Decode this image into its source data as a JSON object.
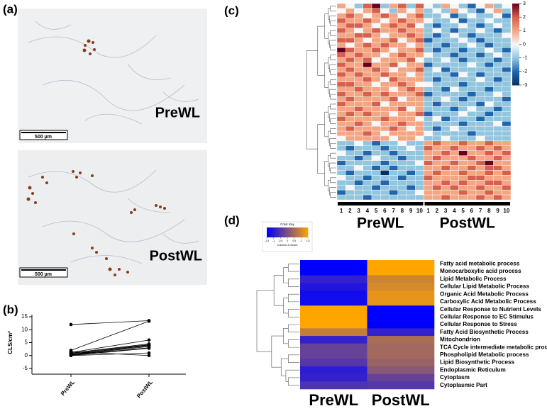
{
  "panel_labels": [
    "(a)",
    "(b)",
    "(c)",
    "(d)"
  ],
  "images": [
    {
      "label": "PreWL",
      "scale_bar": "500 µm"
    },
    {
      "label": "PostWL",
      "scale_bar": "500 µm"
    }
  ],
  "chart_data": [
    {
      "type": "line",
      "y_label": "CLS/cm²",
      "categories": [
        "PreWL",
        "PostWL"
      ],
      "ylim": [
        -5,
        15
      ],
      "yticks": [
        -5,
        0,
        5,
        10,
        15
      ],
      "color": "#000000",
      "series": [
        {
          "values": [
            12,
            13.5
          ]
        },
        {
          "values": [
            2,
            13.3
          ]
        },
        {
          "values": [
            1.2,
            6
          ]
        },
        {
          "values": [
            1,
            4.5
          ]
        },
        {
          "values": [
            0.8,
            4.2
          ]
        },
        {
          "values": [
            0.5,
            3.8
          ]
        },
        {
          "values": [
            0.3,
            3.5
          ]
        },
        {
          "values": [
            0.2,
            3
          ]
        },
        {
          "values": [
            0,
            2.8
          ]
        },
        {
          "values": [
            0,
            1
          ]
        },
        {
          "values": [
            1.5,
            0
          ]
        },
        {
          "values": [
            0.5,
            4
          ]
        }
      ]
    },
    {
      "type": "heatmap",
      "categories": [
        "1",
        "2",
        "3",
        "4",
        "5",
        "6",
        "7",
        "8",
        "9",
        "10",
        "1",
        "2",
        "3",
        "4",
        "5",
        "6",
        "7",
        "8",
        "9",
        "10"
      ],
      "groups": [
        "PreWL",
        "PostWL"
      ],
      "clim": [
        -3,
        3
      ],
      "colorbar_ticks": [
        3,
        2,
        1,
        0,
        -1,
        -2,
        -3
      ],
      "colors": [
        "#053061",
        "#2166ac",
        "#92c5de",
        "#f7f7f7",
        "#f4a582",
        "#d6604d",
        "#67001f"
      ],
      "values": [
        [
          1,
          0,
          -1,
          2,
          3,
          -1,
          1,
          2,
          -1,
          2,
          0,
          -1,
          1,
          0,
          -1,
          -2,
          0,
          1,
          -1,
          0
        ],
        [
          0,
          1,
          0,
          1,
          2,
          0,
          -1,
          1,
          0,
          1,
          -1,
          0,
          -1,
          1,
          0,
          -1,
          -2,
          0,
          1,
          -1
        ],
        [
          1,
          2,
          1,
          0,
          1,
          2,
          1,
          0,
          1,
          2,
          -1,
          -1,
          0,
          -2,
          -1,
          0,
          -1,
          -1,
          0,
          -2
        ],
        [
          2,
          1,
          1,
          2,
          1,
          0,
          1,
          2,
          1,
          1,
          0,
          -1,
          -1,
          0,
          -2,
          -1,
          -1,
          0,
          -1,
          -1
        ],
        [
          1,
          2,
          2,
          1,
          0,
          1,
          2,
          1,
          2,
          0,
          -1,
          -2,
          -1,
          -1,
          0,
          -1,
          -2,
          -1,
          0,
          -1
        ],
        [
          2,
          1,
          0,
          1,
          2,
          1,
          1,
          2,
          1,
          1,
          -1,
          0,
          -1,
          -2,
          -1,
          -1,
          0,
          -1,
          -2,
          -1
        ],
        [
          1,
          1,
          2,
          2,
          1,
          0,
          1,
          1,
          2,
          1,
          -1,
          -2,
          -1,
          0,
          -1,
          -2,
          -1,
          -1,
          -1,
          0
        ],
        [
          2,
          2,
          1,
          0,
          1,
          1,
          2,
          0,
          1,
          2,
          -2,
          -1,
          -1,
          -1,
          0,
          -1,
          -2,
          -1,
          -1,
          -1
        ],
        [
          1,
          0,
          1,
          2,
          1,
          2,
          1,
          1,
          0,
          1,
          -1,
          -1,
          -2,
          -1,
          -1,
          0,
          -1,
          -2,
          -1,
          -1
        ],
        [
          3,
          2,
          1,
          1,
          2,
          1,
          0,
          1,
          1,
          2,
          -1,
          -2,
          -1,
          -1,
          -2,
          -1,
          -1,
          0,
          -1,
          -2
        ],
        [
          2,
          1,
          2,
          1,
          1,
          0,
          1,
          2,
          1,
          1,
          0,
          -1,
          -1,
          -2,
          -1,
          -1,
          -2,
          -1,
          0,
          -1
        ],
        [
          1,
          2,
          1,
          2,
          0,
          1,
          1,
          1,
          2,
          0,
          -1,
          -1,
          0,
          -1,
          -2,
          -1,
          -1,
          -1,
          -2,
          -1
        ],
        [
          2,
          1,
          1,
          3,
          1,
          1,
          2,
          0,
          1,
          1,
          -2,
          -1,
          -1,
          -1,
          -1,
          0,
          -1,
          -2,
          -1,
          -1
        ],
        [
          1,
          2,
          1,
          1,
          2,
          1,
          0,
          1,
          1,
          2,
          -1,
          0,
          -2,
          -1,
          -1,
          -1,
          -1,
          -1,
          -1,
          -2
        ],
        [
          2,
          1,
          2,
          1,
          1,
          2,
          1,
          1,
          0,
          1,
          -1,
          -1,
          -1,
          -2,
          0,
          -1,
          -2,
          -1,
          -1,
          -1
        ],
        [
          1,
          1,
          1,
          2,
          1,
          0,
          2,
          1,
          1,
          1,
          -1,
          -2,
          -1,
          -1,
          -1,
          -1,
          0,
          -1,
          -2,
          -1
        ],
        [
          2,
          2,
          1,
          1,
          0,
          1,
          1,
          2,
          1,
          0,
          0,
          -1,
          -1,
          -1,
          -2,
          -1,
          -1,
          -1,
          -1,
          -1
        ],
        [
          1,
          1,
          2,
          1,
          1,
          1,
          0,
          1,
          2,
          1,
          -1,
          -1,
          -2,
          0,
          -1,
          -1,
          -1,
          -2,
          -1,
          -1
        ],
        [
          2,
          1,
          1,
          2,
          1,
          2,
          1,
          1,
          1,
          2,
          -2,
          -1,
          -1,
          -1,
          -1,
          -2,
          -1,
          -1,
          0,
          -1
        ],
        [
          1,
          2,
          1,
          1,
          1,
          1,
          2,
          0,
          1,
          1,
          -1,
          -1,
          0,
          -1,
          -2,
          -1,
          -1,
          -1,
          -1,
          -2
        ],
        [
          2,
          1,
          1,
          1,
          2,
          0,
          1,
          1,
          1,
          1,
          -1,
          -2,
          -1,
          -1,
          -1,
          -1,
          -2,
          0,
          -1,
          -1
        ],
        [
          1,
          1,
          2,
          1,
          1,
          1,
          1,
          2,
          0,
          1,
          -1,
          -1,
          -1,
          -2,
          -1,
          0,
          -1,
          -1,
          -2,
          -1
        ],
        [
          1,
          2,
          1,
          2,
          1,
          1,
          0,
          1,
          1,
          2,
          -2,
          -1,
          -1,
          -1,
          0,
          -1,
          -1,
          -2,
          -1,
          -1
        ],
        [
          2,
          1,
          1,
          1,
          1,
          2,
          1,
          1,
          1,
          0,
          -1,
          0,
          -2,
          -1,
          -1,
          -1,
          -2,
          -1,
          -1,
          -1
        ],
        [
          1,
          1,
          2,
          1,
          0,
          1,
          1,
          2,
          1,
          1,
          -1,
          -1,
          -1,
          -1,
          -2,
          -1,
          -1,
          -1,
          0,
          -2
        ],
        [
          1,
          2,
          1,
          1,
          1,
          1,
          2,
          1,
          0,
          1,
          -1,
          -2,
          -1,
          0,
          -1,
          -1,
          -1,
          -1,
          -1,
          -1
        ],
        [
          1,
          1,
          1,
          2,
          1,
          0,
          1,
          1,
          1,
          1,
          0,
          -1,
          -1,
          -1,
          -1,
          -2,
          -1,
          -1,
          -1,
          -1
        ],
        [
          0,
          1,
          1,
          1,
          1,
          1,
          0,
          1,
          1,
          0,
          -1,
          -1,
          0,
          -1,
          -1,
          -1,
          0,
          -1,
          -1,
          -1
        ],
        [
          -1,
          -1,
          0,
          -1,
          -2,
          -1,
          -1,
          0,
          -1,
          -1,
          1,
          2,
          1,
          1,
          2,
          1,
          1,
          2,
          1,
          1
        ],
        [
          -1,
          -2,
          -1,
          -1,
          -1,
          -2,
          -1,
          -1,
          0,
          -1,
          2,
          1,
          1,
          2,
          1,
          1,
          2,
          1,
          2,
          1
        ],
        [
          0,
          -1,
          -1,
          -2,
          -1,
          -1,
          -2,
          -1,
          -1,
          -1,
          1,
          1,
          2,
          1,
          3,
          1,
          1,
          2,
          1,
          2
        ],
        [
          -1,
          -1,
          -2,
          -1,
          0,
          -1,
          -1,
          -2,
          -1,
          -1,
          1,
          2,
          1,
          1,
          1,
          2,
          1,
          1,
          2,
          1
        ],
        [
          -2,
          -1,
          -1,
          -1,
          -1,
          -2,
          -1,
          -1,
          -1,
          0,
          2,
          1,
          1,
          2,
          1,
          1,
          2,
          3,
          1,
          1
        ],
        [
          -1,
          -1,
          0,
          -1,
          -2,
          -1,
          -2,
          -1,
          -1,
          -1,
          1,
          1,
          2,
          1,
          1,
          2,
          1,
          2,
          2,
          1
        ],
        [
          -1,
          -2,
          -1,
          -1,
          -1,
          -3,
          -1,
          -1,
          -2,
          -1,
          1,
          2,
          1,
          1,
          2,
          1,
          1,
          2,
          1,
          2
        ],
        [
          0,
          -1,
          -1,
          -2,
          -1,
          -1,
          -1,
          -2,
          -1,
          -1,
          2,
          1,
          1,
          1,
          1,
          2,
          2,
          1,
          1,
          1
        ],
        [
          -1,
          -1,
          -2,
          -1,
          -1,
          -2,
          -1,
          -1,
          -1,
          -1,
          1,
          1,
          2,
          1,
          2,
          1,
          1,
          2,
          2,
          1
        ],
        [
          -1,
          0,
          -1,
          -1,
          -2,
          -1,
          -1,
          -1,
          -2,
          -1,
          1,
          2,
          1,
          2,
          1,
          1,
          2,
          1,
          1,
          2
        ],
        [
          -2,
          -1,
          -1,
          -1,
          -1,
          -1,
          -2,
          -1,
          -1,
          0,
          1,
          1,
          1,
          1,
          2,
          1,
          1,
          2,
          1,
          1
        ],
        [
          -1,
          -1,
          -1,
          -2,
          -1,
          -1,
          -1,
          -1,
          -1,
          -1,
          1,
          1,
          2,
          1,
          1,
          1,
          2,
          1,
          2,
          1
        ]
      ]
    },
    {
      "type": "heatmap",
      "categories": [
        "PreWL",
        "PostWL"
      ],
      "rows": [
        "Fatty acid metabolic process",
        "Monocarboxylic acid process",
        "Lipid Metabolic Process",
        "Cellular Lipid Metabolic Process",
        "Organic Acid Metabolic Process",
        "Carboxylic Acid Metabolic Process",
        "Cellular Response to Nutrient Levels",
        "Cellular Response to EC Stimulus",
        "Cellular Response to Stress",
        "Fatty Acid Biosynthetic Process",
        "Mitochondrion",
        "TCA Cycle intermediate metabolic process",
        "Phospholipid Metabolic process",
        "Lipid Biosynthetic Process",
        "Endoplasmic Reticulum",
        "Cytoplasm",
        "Cytoplasmic Part"
      ],
      "key_title": "Color Key",
      "key_label": "Column Z-Score",
      "clim": [
        -1.5,
        1.5
      ],
      "key_ticks": [
        -1.5,
        -1,
        -0.5,
        0,
        0.5,
        1,
        1.5
      ],
      "colors": [
        "#0000ff",
        "#ffa500"
      ],
      "values": [
        [
          -1.5,
          1.5
        ],
        [
          -1.5,
          1.5
        ],
        [
          -0.9,
          0.9
        ],
        [
          -1.1,
          1.0
        ],
        [
          -1.3,
          1.2
        ],
        [
          -1.3,
          1.2
        ],
        [
          1.5,
          -1.5
        ],
        [
          1.5,
          -1.5
        ],
        [
          1.5,
          -1.5
        ],
        [
          0.8,
          -0.9
        ],
        [
          -0.9,
          0.5
        ],
        [
          -0.3,
          0.4
        ],
        [
          -0.3,
          0.4
        ],
        [
          -0.5,
          0.3
        ],
        [
          -1.0,
          0.1
        ],
        [
          -0.9,
          -0.3
        ],
        [
          -0.6,
          -0.5
        ]
      ]
    }
  ]
}
